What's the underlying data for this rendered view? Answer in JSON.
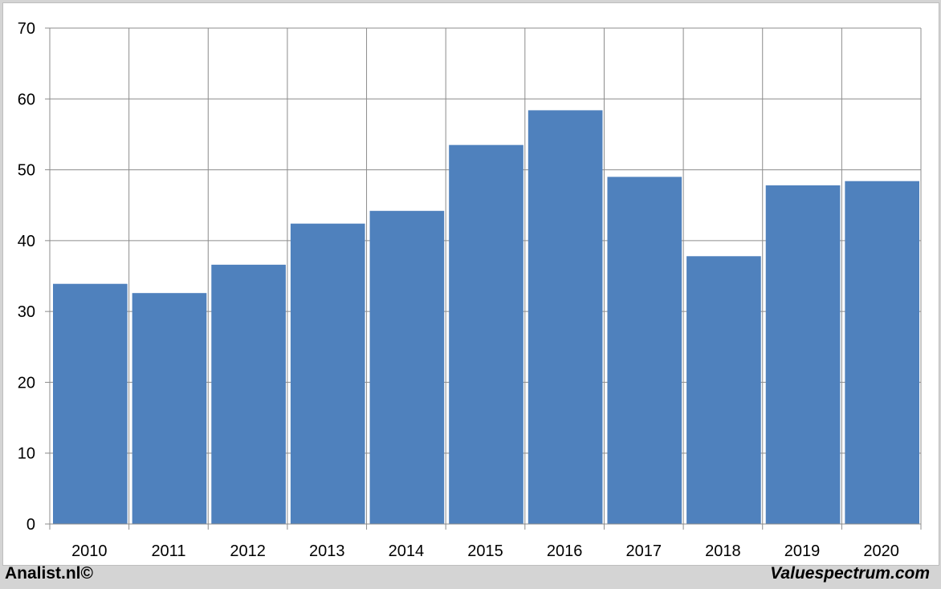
{
  "chart_data": {
    "type": "bar",
    "categories": [
      "2010",
      "2011",
      "2012",
      "2013",
      "2014",
      "2015",
      "2016",
      "2017",
      "2018",
      "2019",
      "2020"
    ],
    "values": [
      33.9,
      32.6,
      36.6,
      42.4,
      44.2,
      53.5,
      58.4,
      49.0,
      37.8,
      47.8,
      48.4
    ],
    "ylim": [
      0,
      70
    ],
    "yticks": [
      "0",
      "10",
      "20",
      "30",
      "40",
      "50",
      "60",
      "70"
    ],
    "grid": true,
    "title": "",
    "xlabel": "",
    "ylabel": "",
    "bar_color": "#4f81bd"
  },
  "footer": {
    "left": "Analist.nl©",
    "right": "Valuespectrum.com"
  }
}
